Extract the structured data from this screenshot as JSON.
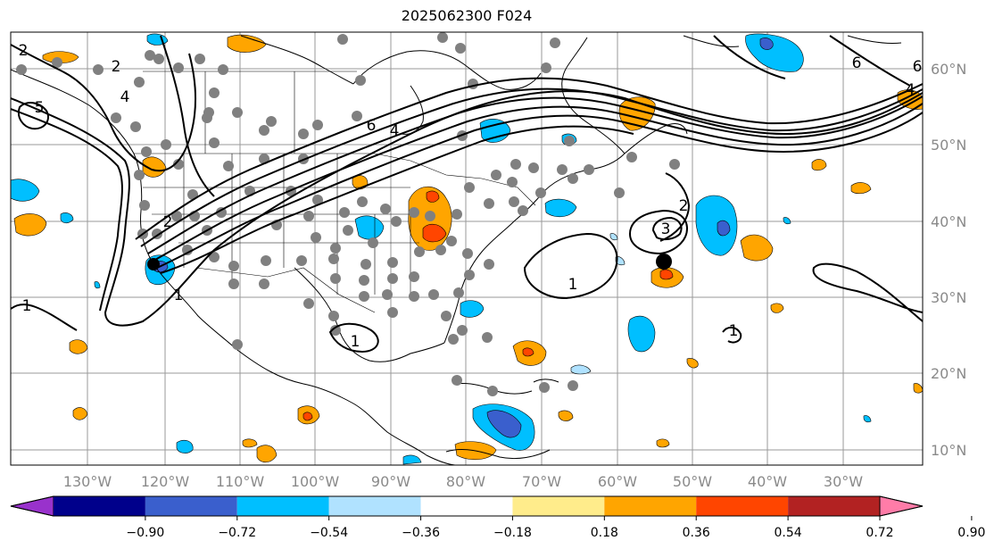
{
  "title": "2025062300 F024",
  "map": {
    "longitude_labels": [
      "130°W",
      "120°W",
      "110°W",
      "100°W",
      "90°W",
      "80°W",
      "70°W",
      "60°W",
      "50°W",
      "40°W",
      "30°W"
    ],
    "latitude_labels": [
      "60°N",
      "50°N",
      "40°N",
      "30°N",
      "20°N",
      "10°N"
    ],
    "contour_labels": [
      "2",
      "4",
      "5",
      "2",
      "6",
      "4",
      "1",
      "1",
      "6",
      "4",
      "6",
      "2",
      "3",
      "1",
      "1",
      "1",
      "2"
    ],
    "colors": {
      "gridline": "#9a9a9a",
      "coastline": "#000000",
      "contour": "#000000",
      "station_marker": "#808080",
      "center_marker": "#000000"
    }
  },
  "colorbar": {
    "tick_labels": [
      "−0.90",
      "−0.72",
      "−0.54",
      "−0.36",
      "−0.18",
      "0.18",
      "0.36",
      "0.54",
      "0.72",
      "0.90"
    ],
    "colors": [
      "#9932cc",
      "#00008b",
      "#3a5fcd",
      "#00bfff",
      "#b0e2ff",
      "#ffffff",
      "#ffec8b",
      "#ffa500",
      "#ff4500",
      "#b22222",
      "#ff7ca8"
    ]
  }
}
